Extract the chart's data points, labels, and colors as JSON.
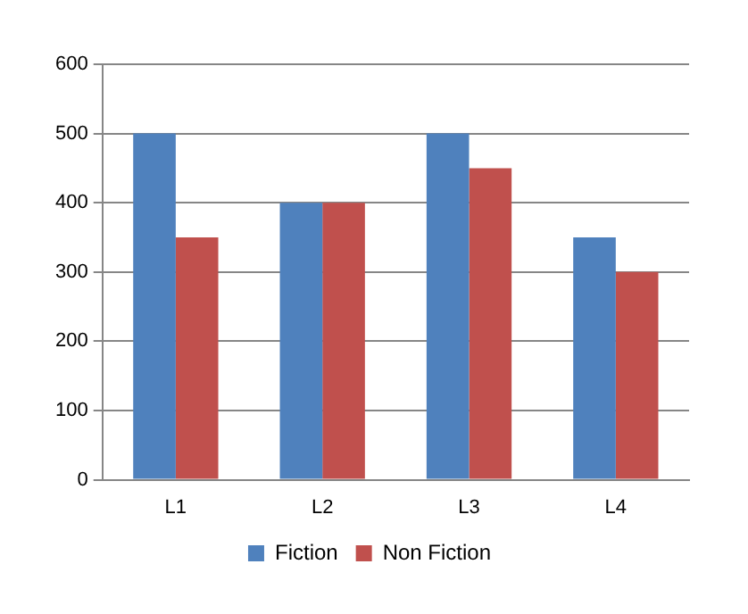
{
  "chart_data": {
    "type": "bar",
    "categories": [
      "L1",
      "L2",
      "L3",
      "L4"
    ],
    "series": [
      {
        "name": "Fiction",
        "color": "#4f81bd",
        "values": [
          500,
          400,
          500,
          350
        ]
      },
      {
        "name": "Non Fiction",
        "color": "#c0504d",
        "values": [
          350,
          400,
          450,
          300
        ]
      }
    ],
    "ylim": [
      0,
      600
    ],
    "yticks": [
      0,
      100,
      200,
      300,
      400,
      500,
      600
    ],
    "grid": "y",
    "legend": "bottom"
  }
}
